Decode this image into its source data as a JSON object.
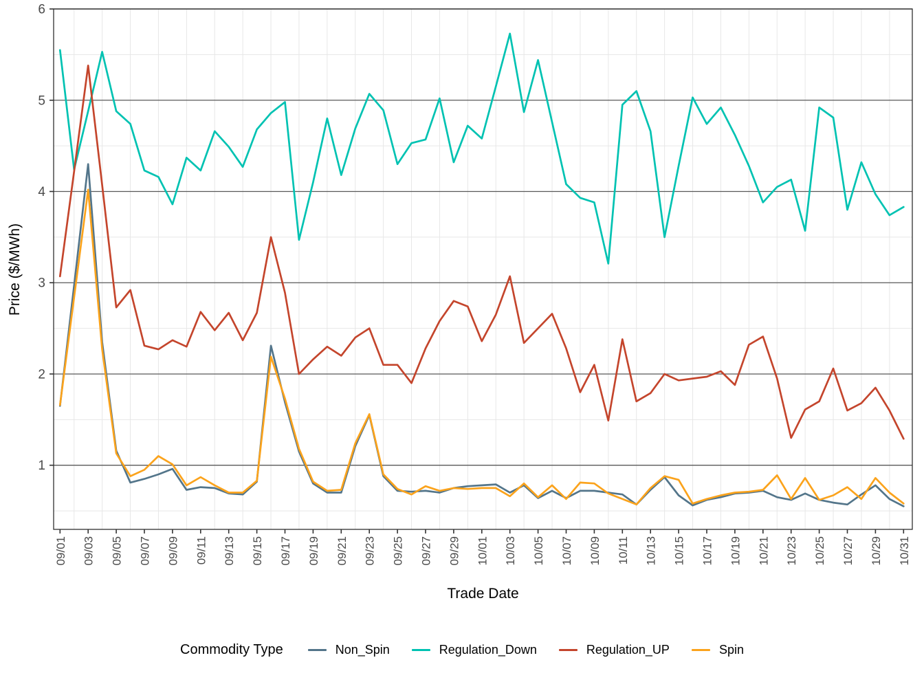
{
  "figure": {
    "x_axis_title": "Trade Date",
    "y_axis_title": "Price ($/MWh)",
    "legend_title": "Commodity Type"
  },
  "chart_data": {
    "type": "line",
    "title": "",
    "xlabel": "Trade Date",
    "ylabel": "Price ($/MWh)",
    "legend_title": "Commodity Type",
    "legend_position": "bottom",
    "grid": "horizontal major dark gray; horizontal minor and vertical minor light gray; black panel border",
    "ylim": [
      0.3,
      6
    ],
    "y_ticks": [
      1,
      2,
      3,
      4,
      5,
      6
    ],
    "y_minor_ticks": [
      0.5,
      1.5,
      2.5,
      3.5,
      4.5,
      5.5
    ],
    "x": [
      "09/01",
      "09/02",
      "09/03",
      "09/04",
      "09/05",
      "09/06",
      "09/07",
      "09/08",
      "09/09",
      "09/10",
      "09/11",
      "09/12",
      "09/13",
      "09/14",
      "09/15",
      "09/16",
      "09/17",
      "09/18",
      "09/19",
      "09/20",
      "09/21",
      "09/22",
      "09/23",
      "09/24",
      "09/25",
      "09/26",
      "09/27",
      "09/28",
      "09/29",
      "09/30",
      "10/01",
      "10/02",
      "10/03",
      "10/04",
      "10/05",
      "10/06",
      "10/07",
      "10/08",
      "10/09",
      "10/10",
      "10/11",
      "10/12",
      "10/13",
      "10/14",
      "10/15",
      "10/16",
      "10/17",
      "10/18",
      "10/19",
      "10/20",
      "10/21",
      "10/22",
      "10/23",
      "10/24",
      "10/25",
      "10/26",
      "10/27",
      "10/28",
      "10/29",
      "10/30",
      "10/31"
    ],
    "x_tick_labels": [
      "09/01",
      "09/03",
      "09/05",
      "09/07",
      "09/09",
      "09/11",
      "09/13",
      "09/15",
      "09/17",
      "09/19",
      "09/21",
      "09/23",
      "09/25",
      "09/27",
      "09/29",
      "10/01",
      "10/03",
      "10/05",
      "10/07",
      "10/09",
      "10/11",
      "10/13",
      "10/15",
      "10/17",
      "10/19",
      "10/21",
      "10/23",
      "10/25",
      "10/27",
      "10/29",
      "10/31"
    ],
    "series": [
      {
        "name": "Non_Spin",
        "color": "#53758a",
        "values": [
          1.65,
          2.97,
          4.3,
          2.35,
          1.16,
          0.81,
          0.85,
          0.9,
          0.96,
          0.73,
          0.76,
          0.75,
          0.69,
          0.68,
          0.82,
          2.31,
          1.69,
          1.15,
          0.8,
          0.7,
          0.7,
          1.21,
          1.55,
          0.88,
          0.72,
          0.71,
          0.72,
          0.7,
          0.75,
          0.77,
          0.78,
          0.79,
          0.7,
          0.78,
          0.64,
          0.72,
          0.64,
          0.72,
          0.72,
          0.7,
          0.68,
          0.57,
          0.73,
          0.87,
          0.67,
          0.56,
          0.62,
          0.65,
          0.69,
          0.7,
          0.72,
          0.65,
          0.62,
          0.69,
          0.62,
          0.59,
          0.57,
          0.68,
          0.78,
          0.63,
          0.55
        ]
      },
      {
        "name": "Regulation_Down",
        "color": "#00c2b2",
        "values": [
          5.55,
          4.24,
          4.88,
          5.53,
          4.88,
          4.74,
          4.23,
          4.16,
          3.86,
          4.37,
          4.23,
          4.66,
          4.49,
          4.27,
          4.68,
          4.86,
          4.98,
          3.47,
          4.1,
          4.8,
          4.18,
          4.69,
          5.07,
          4.89,
          4.3,
          4.53,
          4.57,
          5.02,
          4.32,
          4.72,
          4.58,
          5.15,
          5.73,
          4.87,
          5.44,
          4.76,
          4.08,
          3.93,
          3.88,
          3.21,
          4.95,
          5.1,
          4.66,
          3.5,
          4.28,
          5.03,
          4.74,
          4.92,
          4.62,
          4.28,
          3.88,
          4.05,
          4.13,
          3.57,
          4.92,
          4.81,
          3.8,
          4.32,
          3.97,
          3.74,
          3.83
        ]
      },
      {
        "name": "Regulation_UP",
        "color": "#c4452c",
        "values": [
          3.07,
          4.22,
          5.38,
          4.07,
          2.73,
          2.92,
          2.31,
          2.27,
          2.37,
          2.3,
          2.68,
          2.48,
          2.67,
          2.37,
          2.67,
          3.5,
          2.89,
          2.0,
          2.16,
          2.3,
          2.2,
          2.4,
          2.5,
          2.1,
          2.1,
          1.9,
          2.28,
          2.58,
          2.8,
          2.74,
          2.36,
          2.65,
          3.07,
          2.34,
          2.5,
          2.66,
          2.28,
          1.8,
          2.1,
          1.49,
          2.38,
          1.7,
          1.79,
          2.0,
          1.93,
          1.95,
          1.97,
          2.03,
          1.88,
          2.32,
          2.41,
          1.95,
          1.3,
          1.61,
          1.7,
          2.06,
          1.6,
          1.68,
          1.85,
          1.6,
          1.29
        ]
      },
      {
        "name": "Spin",
        "color": "#fba31c",
        "values": [
          1.66,
          2.84,
          4.02,
          2.27,
          1.13,
          0.88,
          0.95,
          1.1,
          1.01,
          0.78,
          0.87,
          0.78,
          0.7,
          0.7,
          0.83,
          2.19,
          1.73,
          1.18,
          0.82,
          0.72,
          0.73,
          1.24,
          1.56,
          0.9,
          0.74,
          0.68,
          0.77,
          0.72,
          0.75,
          0.74,
          0.75,
          0.75,
          0.66,
          0.8,
          0.65,
          0.78,
          0.63,
          0.81,
          0.8,
          0.69,
          0.63,
          0.57,
          0.75,
          0.88,
          0.84,
          0.58,
          0.63,
          0.67,
          0.7,
          0.71,
          0.73,
          0.89,
          0.63,
          0.86,
          0.62,
          0.67,
          0.76,
          0.63,
          0.86,
          0.7,
          0.58
        ]
      }
    ],
    "style": {
      "major_grid_color": "#585858",
      "minor_grid_color": "#e7e7e7",
      "panel_border_color": "#2f2f2f",
      "tick_color": "#333333",
      "tick_label_color": "#4a4a4a",
      "background": "#ffffff"
    }
  }
}
